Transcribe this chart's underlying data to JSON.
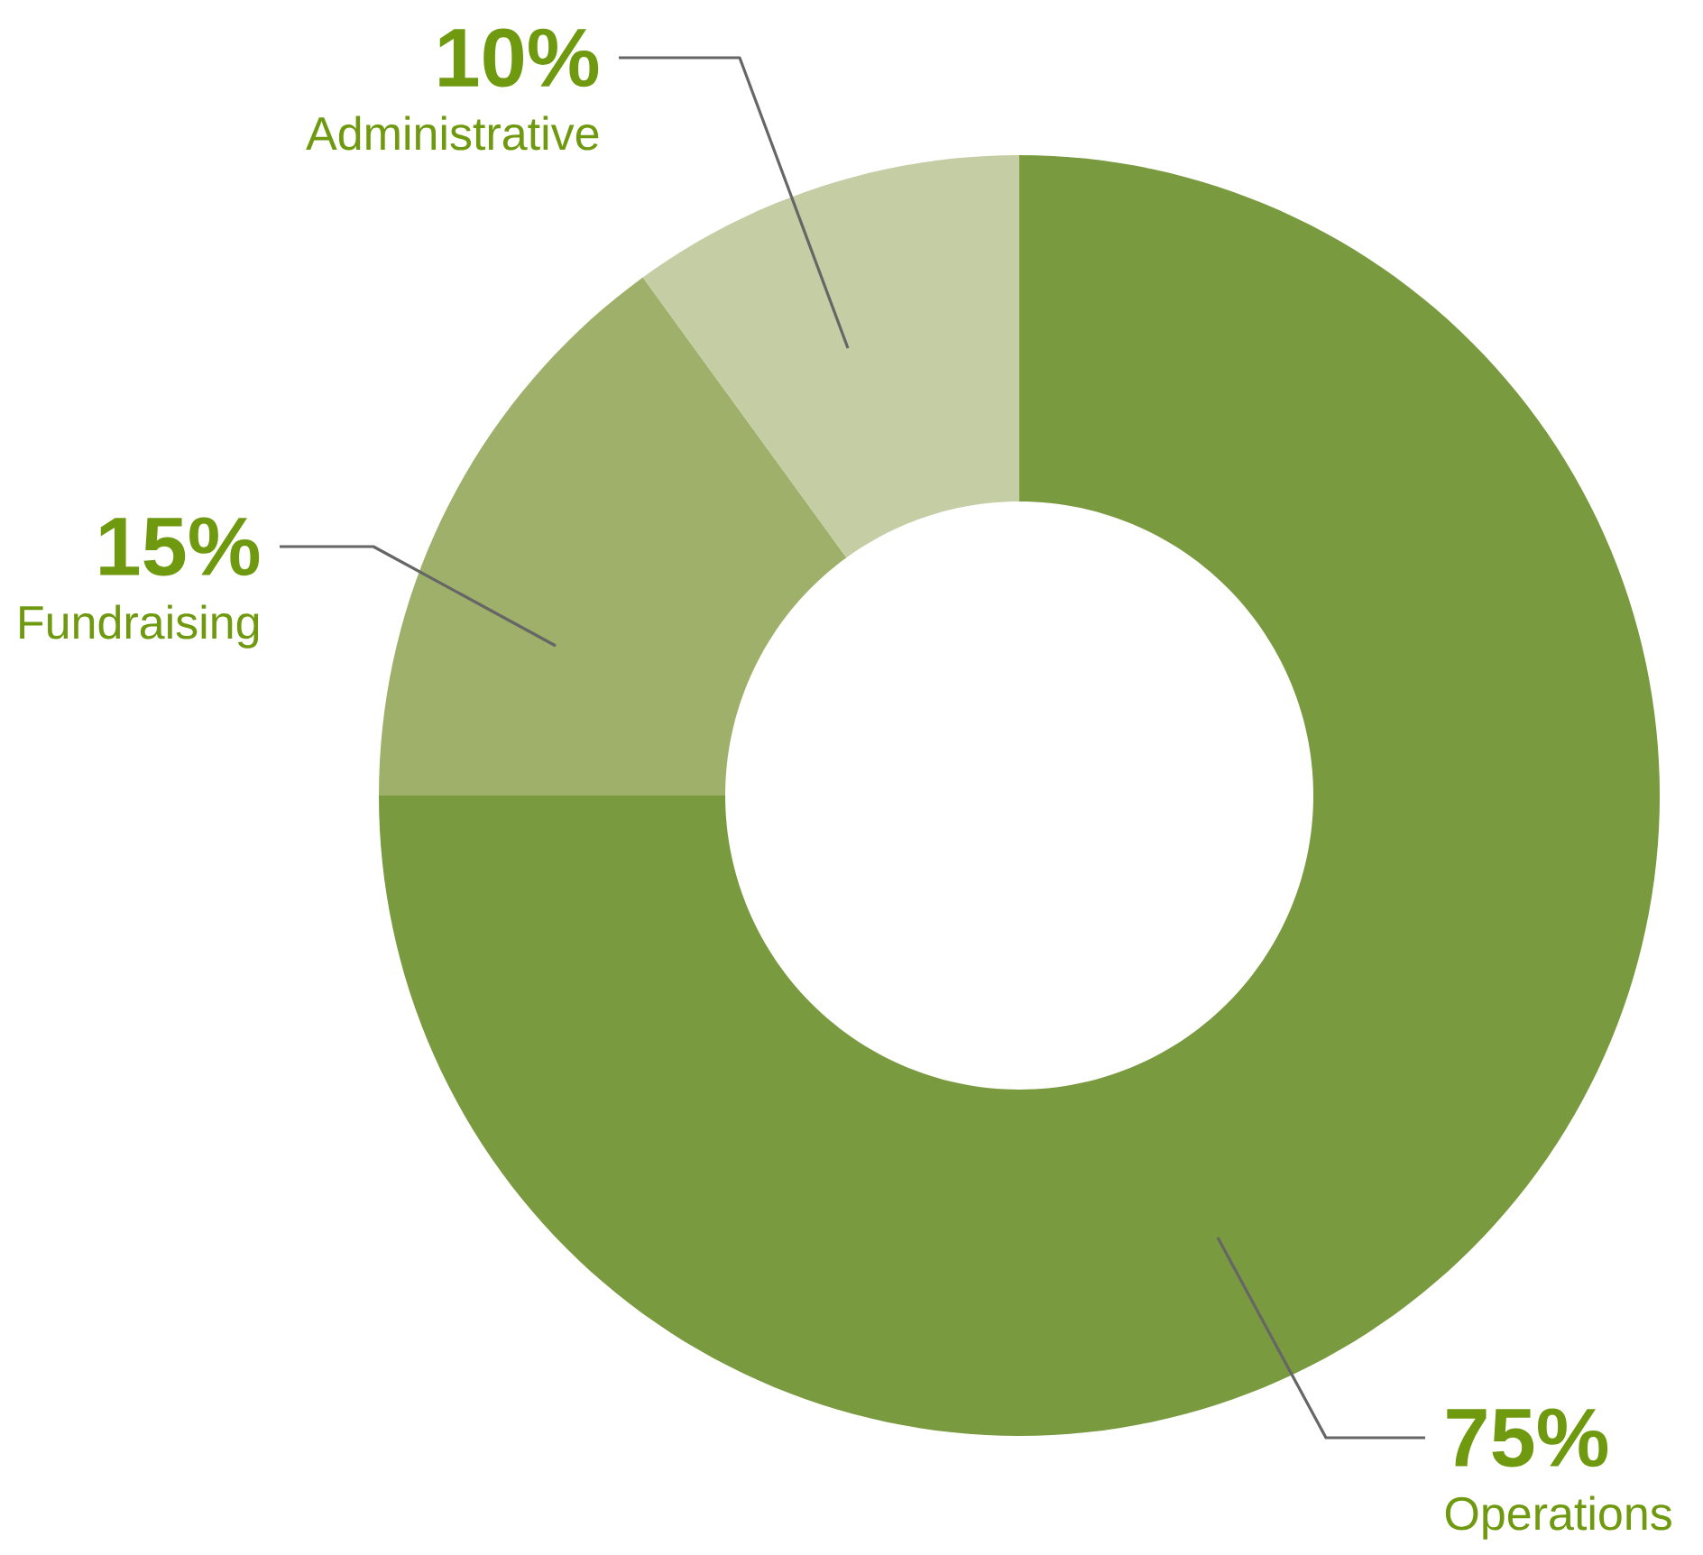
{
  "chart_data": {
    "type": "donut",
    "categories": [
      "Operations",
      "Fundraising",
      "Administrative"
    ],
    "values": [
      75,
      15,
      10
    ],
    "value_labels": [
      "75%",
      "15%",
      "10%"
    ],
    "colors": [
      "#7a9a40",
      "#9fb06b",
      "#c4cda4"
    ]
  }
}
